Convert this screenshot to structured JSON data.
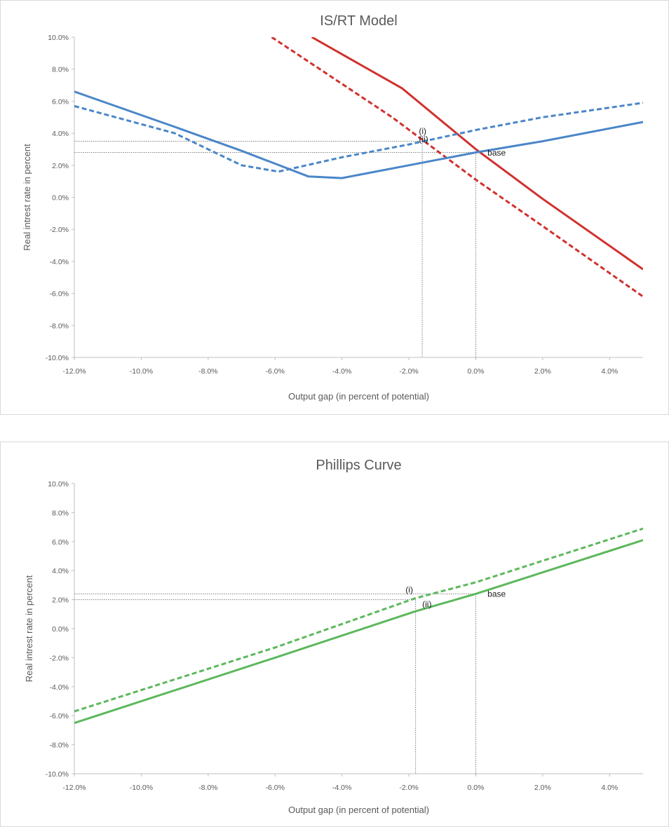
{
  "chart_data": [
    {
      "type": "line",
      "title": "IS/RT Model",
      "xlabel": "Output gap (in percent of potential)",
      "ylabel": "Real intrest rate in percent",
      "xlim": [
        -12,
        5
      ],
      "ylim": [
        -10,
        10
      ],
      "x_ticks": [
        -12,
        -10,
        -8,
        -6,
        -4,
        -2,
        0,
        2,
        4
      ],
      "x_tick_labels": [
        "-12.0%",
        "-10.0%",
        "-8.0%",
        "-6.0%",
        "-4.0%",
        "-2.0%",
        "0.0%",
        "2.0%",
        "4.0%"
      ],
      "y_ticks": [
        10,
        8,
        6,
        4,
        2,
        0,
        -2,
        -4,
        -6,
        -8,
        -10
      ],
      "y_tick_labels": [
        "10.0%",
        "8.0%",
        "6.0%",
        "4.0%",
        "2.0%",
        "0.0%",
        "-2.0%",
        "-4.0%",
        "-6.0%",
        "-8.0%",
        "-10.0%"
      ],
      "grid": false,
      "legend": "none",
      "series": [
        {
          "color": "#d0312d",
          "dash": false,
          "points": [
            [
              -4.9,
              10
            ],
            [
              -2.2,
              6.8
            ],
            [
              0,
              3.0
            ],
            [
              2,
              -0.1
            ],
            [
              5,
              -4.5
            ]
          ]
        },
        {
          "color": "#d0312d",
          "dash": true,
          "points": [
            [
              -6.1,
              10
            ],
            [
              -2.5,
              5.0
            ],
            [
              0,
              1.1
            ],
            [
              2,
              -1.8
            ],
            [
              5,
              -6.2
            ]
          ]
        },
        {
          "color": "#4a86c8",
          "dash": false,
          "points": [
            [
              -12,
              6.6
            ],
            [
              -9,
              4.4
            ],
            [
              -7,
              2.9
            ],
            [
              -5,
              1.3
            ],
            [
              -4,
              1.2
            ],
            [
              -2,
              2.0
            ],
            [
              0,
              2.8
            ],
            [
              2,
              3.5
            ],
            [
              5,
              4.7
            ]
          ]
        },
        {
          "color": "#4a86c8",
          "dash": true,
          "points": [
            [
              -12,
              5.7
            ],
            [
              -9,
              4.0
            ],
            [
              -7,
              2.0
            ],
            [
              -5.9,
              1.6
            ],
            [
              -4,
              2.5
            ],
            [
              -2,
              3.3
            ],
            [
              0,
              4.2
            ],
            [
              2,
              5.0
            ],
            [
              5,
              5.9
            ]
          ]
        }
      ],
      "guides": [
        {
          "x": -1.6,
          "y": 3.5
        },
        {
          "x": 0,
          "y": 2.8
        }
      ],
      "annotations": [
        {
          "text": "(i)",
          "x": -1.7,
          "y": 3.95
        },
        {
          "text": "(ii)",
          "x": -1.7,
          "y": 3.45
        },
        {
          "text": "base",
          "x": 0.35,
          "y": 2.6
        }
      ]
    },
    {
      "type": "line",
      "title": "Phillips Curve",
      "xlabel": "Output gap (in percent of potential)",
      "ylabel": "Real intrest rate in percent",
      "xlim": [
        -12,
        5
      ],
      "ylim": [
        -10,
        10
      ],
      "x_ticks": [
        -12,
        -10,
        -8,
        -6,
        -4,
        -2,
        0,
        2,
        4
      ],
      "x_tick_labels": [
        "-12.0%",
        "-10.0%",
        "-8.0%",
        "-6.0%",
        "-4.0%",
        "-2.0%",
        "0.0%",
        "2.0%",
        "4.0%"
      ],
      "y_ticks": [
        10,
        8,
        6,
        4,
        2,
        0,
        -2,
        -4,
        -6,
        -8,
        -10
      ],
      "y_tick_labels": [
        "10.0%",
        "8.0%",
        "6.0%",
        "4.0%",
        "2.0%",
        "0.0%",
        "-2.0%",
        "-4.0%",
        "-6.0%",
        "-8.0%",
        "-10.0%"
      ],
      "grid": false,
      "legend": "none",
      "series": [
        {
          "color": "#5cb85c",
          "dash": false,
          "points": [
            [
              -12,
              -6.5
            ],
            [
              -6,
              -2.0
            ],
            [
              -1.8,
              1.2
            ],
            [
              0,
              2.4
            ],
            [
              5,
              6.1
            ]
          ]
        },
        {
          "color": "#5cb85c",
          "dash": true,
          "points": [
            [
              -12,
              -5.7
            ],
            [
              -6,
              -1.3
            ],
            [
              -1.8,
              2.1
            ],
            [
              0,
              3.2
            ],
            [
              5,
              6.9
            ]
          ]
        }
      ],
      "guides": [
        {
          "x": -1.8,
          "y": 2.0
        },
        {
          "x": 0,
          "y": 2.4
        }
      ],
      "annotations": [
        {
          "text": "(i)",
          "x": -2.1,
          "y": 2.5
        },
        {
          "text": "(ii)",
          "x": -1.6,
          "y": 1.5
        },
        {
          "text": "base",
          "x": 0.35,
          "y": 2.2
        }
      ]
    }
  ]
}
